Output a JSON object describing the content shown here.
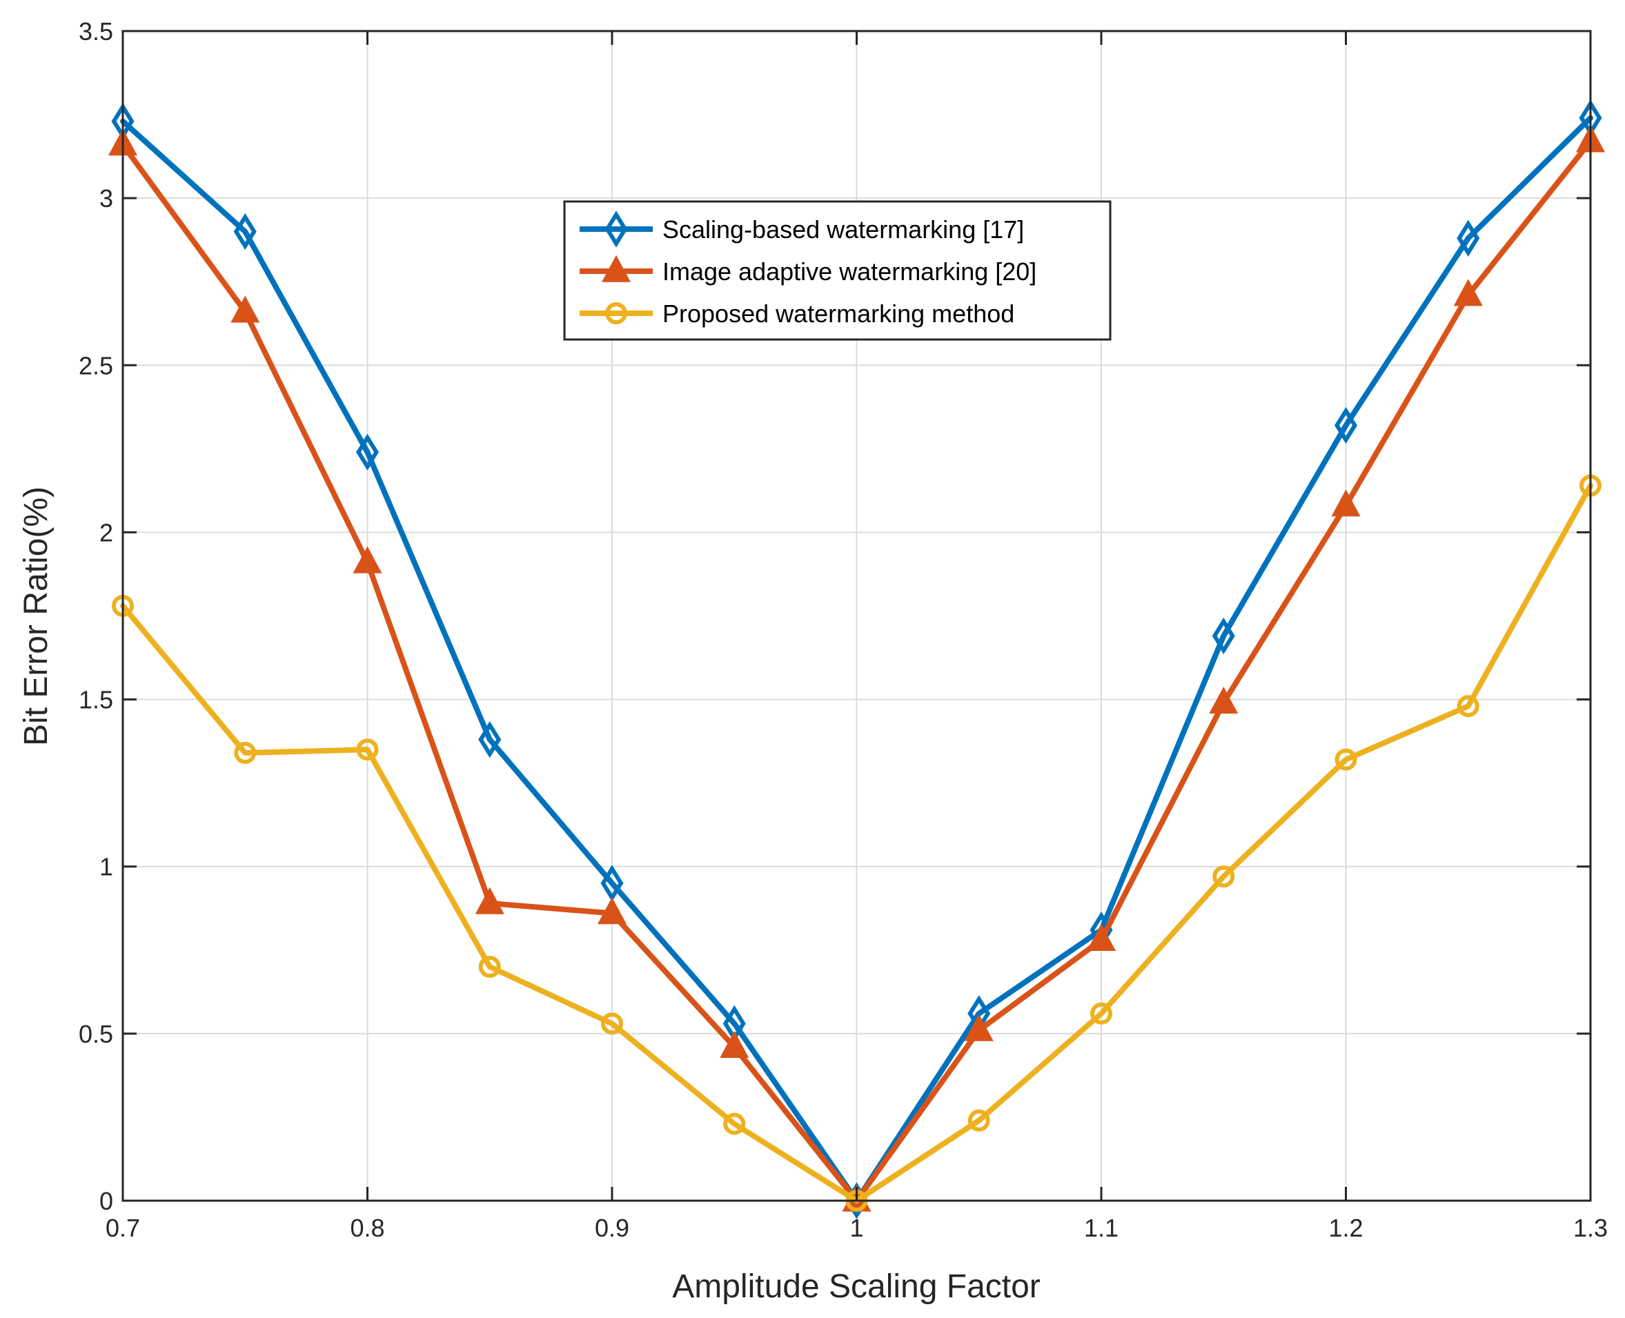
{
  "chart_data": {
    "type": "line",
    "title": "",
    "xlabel": "Amplitude Scaling Factor",
    "ylabel": "Bit Error Ratio(%)",
    "xlim": [
      0.7,
      1.3
    ],
    "ylim": [
      0,
      3.5
    ],
    "grid": true,
    "legend_position": "top-center",
    "x": [
      0.7,
      0.75,
      0.8,
      0.85,
      0.9,
      0.95,
      1.0,
      1.05,
      1.1,
      1.15,
      1.2,
      1.25,
      1.3
    ],
    "x_ticks": [
      0.7,
      0.8,
      0.9,
      1.0,
      1.1,
      1.2,
      1.3
    ],
    "x_tick_labels": [
      "0.7",
      "0.8",
      "0.9",
      "1",
      "1.1",
      "1.2",
      "1.3"
    ],
    "y_ticks": [
      0,
      0.5,
      1,
      1.5,
      2,
      2.5,
      3,
      3.5
    ],
    "y_tick_labels": [
      "0",
      "0.5",
      "1",
      "1.5",
      "2",
      "2.5",
      "3",
      "3.5"
    ],
    "series": [
      {
        "name": "Scaling-based watermarking [17]",
        "color": "#0072BD",
        "marker": "diamond",
        "values": [
          3.23,
          2.9,
          2.24,
          1.38,
          0.95,
          0.53,
          0.0,
          0.56,
          0.81,
          1.69,
          2.32,
          2.88,
          3.24
        ]
      },
      {
        "name": "Image adaptive watermarking [20]",
        "color": "#D95319",
        "marker": "triangle",
        "values": [
          3.16,
          2.66,
          1.91,
          0.89,
          0.86,
          0.46,
          0.0,
          0.51,
          0.78,
          1.49,
          2.08,
          2.71,
          3.17
        ]
      },
      {
        "name": "Proposed watermarking method",
        "color": "#EDB120",
        "marker": "circle",
        "values": [
          1.78,
          1.34,
          1.35,
          0.7,
          0.53,
          0.23,
          0.0,
          0.24,
          0.56,
          0.97,
          1.32,
          1.48,
          2.14
        ]
      }
    ]
  }
}
